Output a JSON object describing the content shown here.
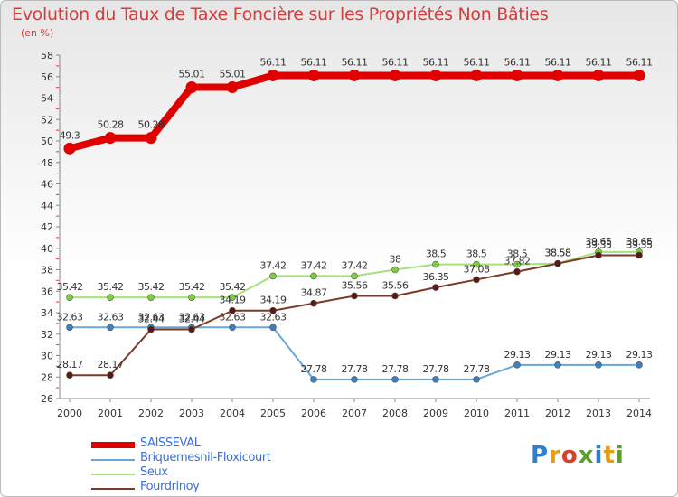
{
  "title": "Evolution du Taux de Taxe Foncière sur les Propriétés Non Bâties",
  "unit_label": "(en %)",
  "logo": {
    "text": "Proxiti",
    "letters": [
      "P",
      "r",
      "o",
      "x",
      "i",
      "t",
      "i"
    ]
  },
  "chart_data": {
    "type": "line",
    "title": "Evolution du Taux de Taxe Foncière sur les Propriétés Non Bâties",
    "ylabel": "(en %)",
    "xlabel": "",
    "ylim": [
      26,
      58
    ],
    "yticks": [
      26,
      28,
      30,
      32,
      34,
      36,
      38,
      40,
      42,
      44,
      46,
      48,
      50,
      52,
      54,
      56,
      58
    ],
    "categories": [
      "2000",
      "2001",
      "2002",
      "2003",
      "2004",
      "2005",
      "2006",
      "2007",
      "2008",
      "2009",
      "2010",
      "2011",
      "2012",
      "2013",
      "2014"
    ],
    "grid": false,
    "legend_position": "bottom-left",
    "series": [
      {
        "name": "SAISSEVAL",
        "color": "#e00000",
        "marker": "#e00000",
        "values": [
          49.3,
          50.28,
          50.28,
          55.01,
          55.01,
          56.11,
          56.11,
          56.11,
          56.11,
          56.11,
          56.11,
          56.11,
          56.11,
          56.11,
          56.11
        ],
        "labels": [
          "49.3",
          "50.28",
          "50.28",
          "55.01",
          "55.01",
          "56.11",
          "56.11",
          "56.11",
          "56.11",
          "56.11",
          "56.11",
          "56.11",
          "56.11",
          "56.11",
          "56.11"
        ]
      },
      {
        "name": "Briquemesnil-Floxicourt",
        "color": "#6aa6d8",
        "marker": "#3f7fbf",
        "values": [
          32.63,
          32.63,
          32.63,
          32.63,
          32.63,
          32.63,
          27.78,
          27.78,
          27.78,
          27.78,
          27.78,
          29.13,
          29.13,
          29.13,
          29.13
        ],
        "labels": [
          "32.63",
          "32.63",
          "32.63",
          "32.63",
          "32.63",
          "32.63",
          "27.78",
          "27.78",
          "27.78",
          "27.78",
          "27.78",
          "29.13",
          "29.13",
          "29.13",
          "29.13"
        ]
      },
      {
        "name": "Seux",
        "color": "#a8e07a",
        "marker": "#7ccf3c",
        "values": [
          35.42,
          35.42,
          35.42,
          35.42,
          35.42,
          37.42,
          37.42,
          37.42,
          38,
          38.5,
          38.5,
          38.5,
          38.58,
          39.65,
          39.65
        ],
        "labels": [
          "35.42",
          "35.42",
          "35.42",
          "35.42",
          "35.42",
          "37.42",
          "37.42",
          "37.42",
          "38",
          "38.5",
          "38.5",
          "38.5",
          "38.58",
          "39.65",
          "39.65"
        ]
      },
      {
        "name": "Fourdrinoy",
        "color": "#7a3a2a",
        "marker": "#5a1a12",
        "values": [
          28.17,
          28.17,
          32.44,
          32.44,
          34.19,
          34.19,
          34.87,
          35.56,
          35.56,
          36.35,
          37.08,
          37.82,
          38.58,
          39.35,
          39.35
        ],
        "labels": [
          "28.17",
          "28.17",
          "32.44",
          "32.44",
          "34.19",
          "34.19",
          "34.87",
          "35.56",
          "35.56",
          "36.35",
          "37.08",
          "37.82",
          "38.58",
          "39.35",
          "39.35"
        ]
      }
    ]
  }
}
